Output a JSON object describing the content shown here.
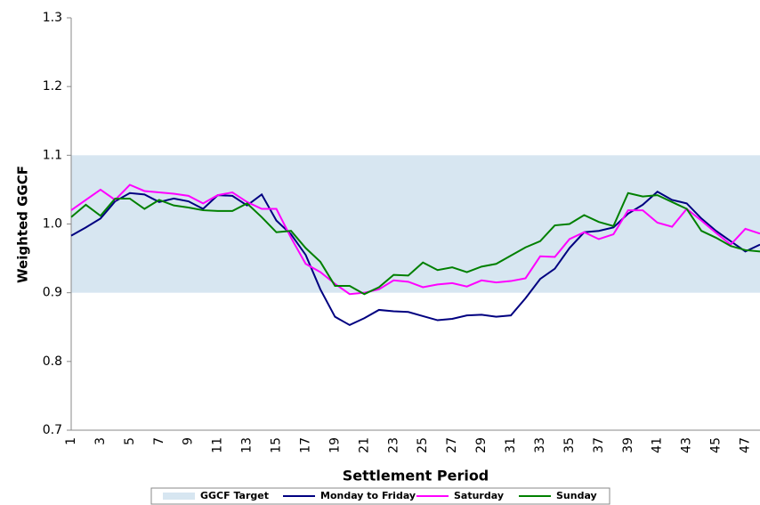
{
  "chart_data": {
    "type": "line",
    "x_label": "Settlement Period",
    "y_label": "Weighted GGCF",
    "categories": [
      "1",
      null,
      "3",
      null,
      "5",
      null,
      "7",
      null,
      "9",
      null,
      "11",
      null,
      "13",
      null,
      "15",
      null,
      "17",
      null,
      "19",
      null,
      "21",
      null,
      "23",
      null,
      "25",
      null,
      "27",
      null,
      "29",
      null,
      "31",
      null,
      "33",
      null,
      "35",
      null,
      "37",
      null,
      "39",
      null,
      "41",
      null,
      "43",
      null,
      "45",
      null,
      "47",
      null
    ],
    "band": {
      "name": "GGCF Target",
      "color": "#d7e6f1",
      "range": [
        0.9,
        1.1
      ]
    },
    "series": [
      {
        "name": "Monday to Friday",
        "color": "#000080",
        "values": [
          0.983,
          0.995,
          1.008,
          1.033,
          1.045,
          1.043,
          1.032,
          1.037,
          1.033,
          1.022,
          1.042,
          1.041,
          1.027,
          1.043,
          1.005,
          0.985,
          0.955,
          0.905,
          0.865,
          0.853,
          0.863,
          0.875,
          0.873,
          0.872,
          0.866,
          0.86,
          0.862,
          0.867,
          0.868,
          0.865,
          0.867,
          0.892,
          0.92,
          0.935,
          0.965,
          0.988,
          0.99,
          0.995,
          1.015,
          1.028,
          1.047,
          1.035,
          1.03,
          1.008,
          0.99,
          0.975,
          0.96,
          0.97
        ]
      },
      {
        "name": "Saturday",
        "color": "#ff00ff",
        "values": [
          1.02,
          1.035,
          1.05,
          1.035,
          1.057,
          1.048,
          1.046,
          1.044,
          1.041,
          1.03,
          1.042,
          1.046,
          1.032,
          1.022,
          1.022,
          0.98,
          0.942,
          0.93,
          0.913,
          0.898,
          0.9,
          0.905,
          0.918,
          0.916,
          0.908,
          0.912,
          0.914,
          0.909,
          0.918,
          0.915,
          0.917,
          0.921,
          0.953,
          0.952,
          0.978,
          0.988,
          0.978,
          0.985,
          1.02,
          1.02,
          1.002,
          0.996,
          1.022,
          1.005,
          0.987,
          0.97,
          0.993,
          0.986
        ]
      },
      {
        "name": "Sunday",
        "color": "#008000",
        "values": [
          1.01,
          1.028,
          1.012,
          1.037,
          1.037,
          1.022,
          1.035,
          1.027,
          1.024,
          1.02,
          1.019,
          1.019,
          1.03,
          1.01,
          0.988,
          0.99,
          0.965,
          0.945,
          0.91,
          0.91,
          0.898,
          0.908,
          0.926,
          0.925,
          0.944,
          0.933,
          0.937,
          0.93,
          0.938,
          0.942,
          0.954,
          0.966,
          0.975,
          0.998,
          1.0,
          1.013,
          1.003,
          0.997,
          1.045,
          1.04,
          1.042,
          1.032,
          1.022,
          0.99,
          0.98,
          0.968,
          0.962,
          0.96
        ]
      }
    ],
    "ylim": [
      0.7,
      1.3
    ],
    "yticks": [
      0.7,
      0.8,
      0.9,
      {
        "value": 1,
        "label": "1.0"
      },
      1.1,
      1.2,
      1.3
    ],
    "grid": false
  }
}
